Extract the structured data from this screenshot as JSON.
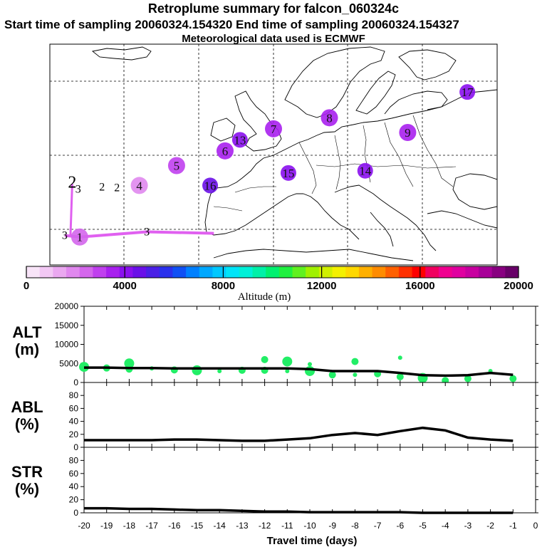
{
  "header": {
    "title": "Retroplume summary for falcon_060324c",
    "sampling": "Start time of sampling 20060324.154320     End time of sampling 20060324.154327",
    "met": "Meteorological data used is ECMWF"
  },
  "colors": {
    "track": "#e060f0",
    "alt_dots": "#22ee66",
    "line": "#000000"
  },
  "colorbar": {
    "ticks": [
      "0",
      "4000",
      "8000",
      "12000",
      "16000",
      "20000"
    ],
    "label": "Altitude (m)",
    "range": [
      0,
      20000
    ],
    "colors": [
      "#f8e4f8",
      "#f2c8f4",
      "#eaa8f0",
      "#e088ee",
      "#d466ec",
      "#c040ee",
      "#a820ee",
      "#8a10ee",
      "#6a10e8",
      "#4a20e6",
      "#2a30ec",
      "#1050f4",
      "#0080ff",
      "#00a8ff",
      "#00c8ff",
      "#00e4f8",
      "#00f0d8",
      "#00f0a8",
      "#00f070",
      "#20f040",
      "#60f020",
      "#a0f000",
      "#d0f000",
      "#f4f000",
      "#ffd800",
      "#ffb000",
      "#ff8c00",
      "#ff6000",
      "#ff3000",
      "#ff0000",
      "#f00060",
      "#f00090",
      "#e000a0",
      "#c800a0",
      "#a80098",
      "#880080",
      "#680068"
    ]
  },
  "map_markers": [
    {
      "label": "2",
      "lon": -22,
      "lat": 46,
      "alt": 500
    },
    {
      "label": "3",
      "lon": -21.2,
      "lat": 45.3,
      "alt": 500
    },
    {
      "label": "2",
      "lon": -18,
      "lat": 45.6,
      "alt": 500
    },
    {
      "label": "2",
      "lon": -16,
      "lat": 45.5,
      "alt": 500
    },
    {
      "label": "4",
      "lon": -13,
      "lat": 45.8,
      "alt": 2000
    },
    {
      "label": "5",
      "lon": -8,
      "lat": 48.5,
      "alt": 3000
    },
    {
      "label": "6",
      "lon": -1.5,
      "lat": 50.5,
      "alt": 3300
    },
    {
      "label": "13",
      "lon": 0.5,
      "lat": 52.0,
      "alt": 4200
    },
    {
      "label": "16",
      "lon": -3.5,
      "lat": 45.8,
      "alt": 4500
    },
    {
      "label": "7",
      "lon": 5,
      "lat": 53.5,
      "alt": 3700
    },
    {
      "label": "15",
      "lon": 7,
      "lat": 47.5,
      "alt": 4300
    },
    {
      "label": "8",
      "lon": 12.5,
      "lat": 55.0,
      "alt": 3700
    },
    {
      "label": "14",
      "lon": 17.3,
      "lat": 47.8,
      "alt": 4300
    },
    {
      "label": "9",
      "lon": 23,
      "lat": 53.0,
      "alt": 3500
    },
    {
      "label": "17",
      "lon": 31,
      "lat": 58.5,
      "alt": 4200
    },
    {
      "label": "3",
      "lon": -12,
      "lat": 39.5,
      "alt": 500
    },
    {
      "label": "3",
      "lon": -23,
      "lat": 39.0,
      "alt": 500
    },
    {
      "label": "1",
      "lon": -21,
      "lat": 38.8,
      "alt": 2500
    }
  ],
  "chart_data": [
    {
      "type": "line",
      "panel": "ALT",
      "ylabel": "ALT\n(m)",
      "ylim": [
        0,
        20000
      ],
      "yticks": [
        "0",
        "5000",
        "10000",
        "15000",
        "20000"
      ],
      "xlim": [
        -20,
        0
      ],
      "x": [
        -20,
        -19,
        -18,
        -17,
        -16,
        -15,
        -14,
        -13,
        -12,
        -11,
        -10,
        -9,
        -8,
        -7,
        -6,
        -5,
        -4,
        -3,
        -2,
        -1
      ],
      "values": [
        3900,
        3900,
        3800,
        3800,
        3700,
        3700,
        3700,
        3700,
        3700,
        3700,
        3500,
        3000,
        3000,
        3000,
        2500,
        1900,
        1800,
        1900,
        2500,
        2000
      ],
      "dots": [
        [
          -20,
          4100
        ],
        [
          -19,
          3800
        ],
        [
          -18,
          3500
        ],
        [
          -17,
          3700
        ],
        [
          -16,
          3300
        ],
        [
          -15,
          3200
        ],
        [
          -14,
          3000
        ],
        [
          -13,
          3200
        ],
        [
          -12,
          3200
        ],
        [
          -11,
          3000
        ],
        [
          -10,
          3000
        ],
        [
          -9,
          2000
        ],
        [
          -8,
          2000
        ],
        [
          -7,
          2300
        ],
        [
          -6,
          1500
        ],
        [
          -5,
          1200
        ],
        [
          -4,
          500
        ],
        [
          -3,
          1000
        ],
        [
          -2,
          3000
        ],
        [
          -1,
          1000
        ],
        [
          -11,
          5500
        ],
        [
          -10,
          4800
        ],
        [
          -12,
          6000
        ],
        [
          -8,
          5500
        ],
        [
          -6,
          6500
        ],
        [
          -18,
          5000
        ]
      ]
    },
    {
      "type": "line",
      "panel": "ABL",
      "ylabel": "ABL\n(%)",
      "ylim": [
        0,
        100
      ],
      "yticks": [
        "0",
        "20",
        "40",
        "60",
        "80"
      ],
      "xlim": [
        -20,
        0
      ],
      "x": [
        -20,
        -19,
        -18,
        -17,
        -16,
        -15,
        -14,
        -13,
        -12,
        -11,
        -10,
        -9,
        -8,
        -7,
        -6,
        -5,
        -4,
        -3,
        -2,
        -1
      ],
      "values": [
        11,
        11,
        11,
        11,
        12,
        12,
        11,
        10,
        10,
        12,
        14,
        19,
        22,
        19,
        25,
        30,
        26,
        15,
        12,
        10
      ]
    },
    {
      "type": "line",
      "panel": "STR",
      "ylabel": "STR\n(%)",
      "ylim": [
        0,
        100
      ],
      "yticks": [
        "0",
        "20",
        "40",
        "60",
        "80"
      ],
      "xlim": [
        -20,
        0
      ],
      "xticks": [
        "-20",
        "-19",
        "-18",
        "-17",
        "-16",
        "-15",
        "-14",
        "-13",
        "-12",
        "-11",
        "-10",
        "-9",
        "-8",
        "-7",
        "-6",
        "-5",
        "-4",
        "-3",
        "-2",
        "-1",
        "0"
      ],
      "xlabel": "Travel time (days)",
      "x": [
        -20,
        -19,
        -18,
        -17,
        -16,
        -15,
        -14,
        -13,
        -12,
        -11,
        -10,
        -9,
        -8,
        -7,
        -6,
        -5,
        -4,
        -3,
        -2,
        -1
      ],
      "values": [
        7,
        7,
        6,
        6,
        5,
        4,
        4,
        3,
        2,
        2,
        1,
        1,
        1,
        1,
        1,
        0,
        0,
        0,
        0,
        0
      ]
    }
  ]
}
